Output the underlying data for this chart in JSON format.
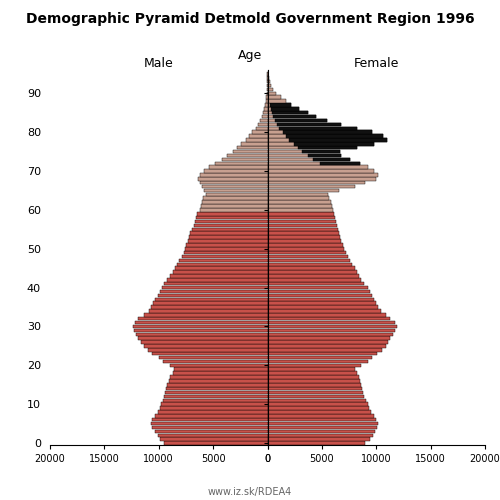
{
  "title": "Demographic Pyramid Detmold Government Region 1996",
  "xlabel_left": "Male",
  "xlabel_right": "Female",
  "ylabel": "Age",
  "xlim": 20000,
  "watermark": "www.iz.sk/RDEA4",
  "color_young": "#C8514A",
  "color_old": "#C8A090",
  "color_excess": "#111111",
  "ages": [
    0,
    1,
    2,
    3,
    4,
    5,
    6,
    7,
    8,
    9,
    10,
    11,
    12,
    13,
    14,
    15,
    16,
    17,
    18,
    19,
    20,
    21,
    22,
    23,
    24,
    25,
    26,
    27,
    28,
    29,
    30,
    31,
    32,
    33,
    34,
    35,
    36,
    37,
    38,
    39,
    40,
    41,
    42,
    43,
    44,
    45,
    46,
    47,
    48,
    49,
    50,
    51,
    52,
    53,
    54,
    55,
    56,
    57,
    58,
    59,
    60,
    61,
    62,
    63,
    64,
    65,
    66,
    67,
    68,
    69,
    70,
    71,
    72,
    73,
    74,
    75,
    76,
    77,
    78,
    79,
    80,
    81,
    82,
    83,
    84,
    85,
    86,
    87,
    88,
    89,
    90,
    91,
    92,
    93,
    94,
    95
  ],
  "male": [
    9500,
    9900,
    10100,
    10300,
    10600,
    10700,
    10600,
    10300,
    10100,
    9900,
    9800,
    9600,
    9500,
    9400,
    9300,
    9200,
    9100,
    9000,
    8700,
    8600,
    9000,
    9600,
    10000,
    10600,
    11000,
    11400,
    11600,
    11900,
    12100,
    12300,
    12400,
    12200,
    11900,
    11400,
    10900,
    10700,
    10500,
    10300,
    10100,
    9900,
    9700,
    9500,
    9200,
    9000,
    8700,
    8500,
    8300,
    8100,
    7900,
    7700,
    7600,
    7500,
    7300,
    7200,
    7100,
    6900,
    6800,
    6700,
    6600,
    6500,
    6200,
    6100,
    6000,
    5900,
    5700,
    5800,
    6000,
    6200,
    6400,
    6200,
    5800,
    5400,
    4800,
    4200,
    3700,
    3200,
    2800,
    2400,
    2000,
    1700,
    1400,
    1100,
    900,
    700,
    550,
    430,
    320,
    240,
    170,
    120,
    80,
    50,
    30,
    18,
    10,
    5
  ],
  "female": [
    9000,
    9400,
    9700,
    9900,
    10100,
    10200,
    10000,
    9800,
    9500,
    9300,
    9200,
    9100,
    8900,
    8800,
    8700,
    8600,
    8500,
    8400,
    8200,
    8000,
    8600,
    9200,
    9600,
    10100,
    10500,
    10900,
    11100,
    11300,
    11500,
    11700,
    11900,
    11700,
    11300,
    10900,
    10400,
    10200,
    10000,
    9800,
    9600,
    9400,
    9200,
    8900,
    8600,
    8400,
    8200,
    8000,
    7800,
    7600,
    7400,
    7200,
    7000,
    6900,
    6800,
    6700,
    6600,
    6500,
    6400,
    6300,
    6200,
    6100,
    6000,
    5900,
    5800,
    5700,
    5600,
    6600,
    8000,
    9000,
    10000,
    10200,
    9800,
    9200,
    8500,
    7600,
    6800,
    6700,
    8200,
    9800,
    11000,
    10600,
    9600,
    8200,
    6800,
    5500,
    4500,
    3700,
    2900,
    2200,
    1700,
    1200,
    800,
    500,
    310,
    190,
    110,
    60
  ],
  "color_threshold_age": 60,
  "black_start_age": 72,
  "black_end_age": 87,
  "yticks": [
    0,
    10,
    20,
    30,
    40,
    50,
    60,
    70,
    80,
    90
  ],
  "xticks_left": [
    20000,
    15000,
    10000,
    5000,
    0
  ],
  "xticks_right": [
    0,
    5000,
    10000,
    15000,
    20000
  ]
}
